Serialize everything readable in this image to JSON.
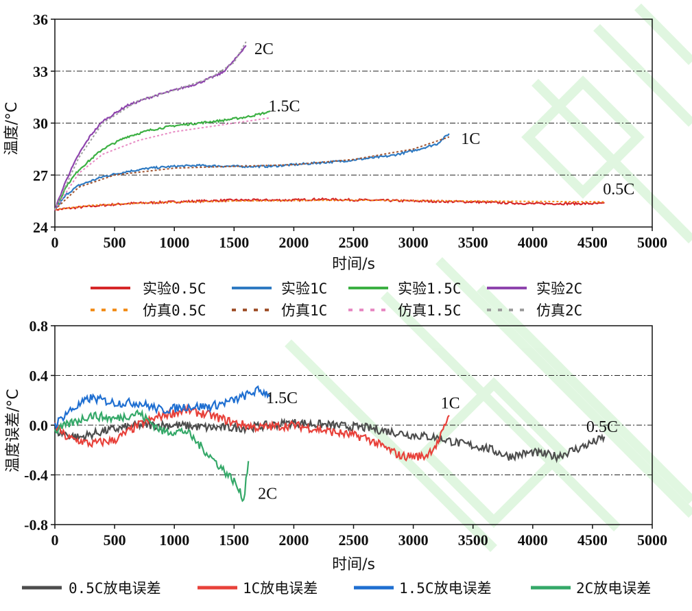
{
  "chart_data": [
    {
      "type": "line",
      "title": "",
      "xlabel": "时间/s",
      "ylabel": "温度/°C",
      "xlim": [
        0,
        5000
      ],
      "ylim": [
        24,
        36
      ],
      "xticks": [
        "0",
        "500",
        "1000",
        "1500",
        "2000",
        "2500",
        "3000",
        "3500",
        "4000",
        "4500",
        "5000"
      ],
      "yticks": [
        "24",
        "27",
        "30",
        "33",
        "36"
      ],
      "grid": "dash-dot horizontal at 27, 30, 33",
      "legend_position": "bottom",
      "annotations": [
        {
          "text": "2C",
          "x": 1750,
          "y": 34.3
        },
        {
          "text": "1.5C",
          "x": 1920,
          "y": 31.0
        },
        {
          "text": "1C",
          "x": 3480,
          "y": 29.1
        },
        {
          "text": "0.5C",
          "x": 4720,
          "y": 26.2
        }
      ],
      "series": [
        {
          "name": "实验0.5C",
          "style": "solid",
          "color": "#d62728",
          "x": [
            0,
            300,
            600,
            1000,
            1500,
            2000,
            2200,
            2600,
            3000,
            3500,
            4000,
            4300,
            4600
          ],
          "y": [
            25.0,
            25.2,
            25.35,
            25.45,
            25.55,
            25.55,
            25.6,
            25.55,
            25.5,
            25.45,
            25.35,
            25.35,
            25.35
          ]
        },
        {
          "name": "实验1C",
          "style": "solid",
          "color": "#2f7ac2",
          "x": [
            0,
            100,
            200,
            400,
            600,
            800,
            1000,
            1200,
            1500,
            1800,
            2000,
            2400,
            2800,
            3000,
            3200,
            3300
          ],
          "y": [
            25.0,
            25.9,
            26.4,
            26.9,
            27.2,
            27.4,
            27.5,
            27.55,
            27.5,
            27.5,
            27.6,
            27.8,
            28.1,
            28.4,
            28.8,
            29.4
          ]
        },
        {
          "name": "实验1.5C",
          "style": "solid",
          "color": "#3cb043",
          "x": [
            0,
            100,
            200,
            400,
            600,
            800,
            1000,
            1200,
            1400,
            1600,
            1800
          ],
          "y": [
            25.0,
            26.4,
            27.3,
            28.5,
            29.2,
            29.6,
            29.85,
            30.0,
            30.15,
            30.35,
            30.65
          ]
        },
        {
          "name": "实验2C",
          "style": "solid",
          "color": "#8e44ad",
          "x": [
            0,
            100,
            200,
            300,
            400,
            600,
            800,
            1000,
            1200,
            1400,
            1500,
            1600
          ],
          "y": [
            25.0,
            26.8,
            28.2,
            29.3,
            30.1,
            31.0,
            31.5,
            31.9,
            32.3,
            32.9,
            33.6,
            34.5
          ]
        },
        {
          "name": "仿真0.5C",
          "style": "dotted",
          "color": "#f28e1c",
          "x": [
            0,
            300,
            800,
            1500,
            2500,
            3500,
            4600
          ],
          "y": [
            25.0,
            25.25,
            25.4,
            25.5,
            25.55,
            25.5,
            25.45
          ]
        },
        {
          "name": "仿真1C",
          "style": "dotted",
          "color": "#a0522d",
          "x": [
            0,
            200,
            500,
            1000,
            1500,
            2000,
            2500,
            3000,
            3300
          ],
          "y": [
            25.0,
            26.3,
            27.0,
            27.4,
            27.5,
            27.6,
            27.9,
            28.5,
            29.2
          ]
        },
        {
          "name": "仿真1.5C",
          "style": "dotted",
          "color": "#e78ac3",
          "x": [
            0,
            200,
            400,
            700,
            1000,
            1400,
            1800
          ],
          "y": [
            25.0,
            27.1,
            28.2,
            29.0,
            29.5,
            29.9,
            30.3
          ]
        },
        {
          "name": "仿真2C",
          "style": "dotted",
          "color": "#9e9e9e",
          "x": [
            0,
            200,
            400,
            700,
            1000,
            1300,
            1500,
            1600
          ],
          "y": [
            25.0,
            28.0,
            30.0,
            31.3,
            31.9,
            32.6,
            33.5,
            34.7
          ]
        }
      ]
    },
    {
      "type": "line",
      "title": "",
      "xlabel": "时间/s",
      "ylabel": "温度误差/°C",
      "xlim": [
        0,
        5000
      ],
      "ylim": [
        -0.8,
        0.8
      ],
      "xticks": [
        "0",
        "500",
        "1000",
        "1500",
        "2000",
        "2500",
        "3000",
        "3500",
        "4000",
        "4500",
        "5000"
      ],
      "yticks": [
        "0.8",
        "0.4",
        "0.0",
        "-0.4",
        "-0.8"
      ],
      "grid": "dash-dot horizontal at -0.4, 0.0, 0.4",
      "legend_position": "bottom",
      "annotations": [
        {
          "text": "1.5C",
          "x": 1900,
          "y": 0.22
        },
        {
          "text": "1C",
          "x": 3310,
          "y": 0.18
        },
        {
          "text": "0.5C",
          "x": 4580,
          "y": -0.01
        },
        {
          "text": "2C",
          "x": 1780,
          "y": -0.55
        }
      ],
      "series": [
        {
          "name": "0.5C放电误差",
          "color": "#4d4d4d",
          "x": [
            0,
            200,
            400,
            700,
            1000,
            1300,
            1600,
            2000,
            2300,
            2600,
            2800,
            3000,
            3200,
            3400,
            3600,
            3800,
            4000,
            4200,
            4400,
            4600
          ],
          "y": [
            -0.05,
            -0.1,
            -0.05,
            0.0,
            0.0,
            -0.02,
            -0.02,
            0.02,
            0.0,
            -0.02,
            -0.05,
            -0.08,
            -0.1,
            -0.15,
            -0.18,
            -0.25,
            -0.22,
            -0.25,
            -0.18,
            -0.1
          ]
        },
        {
          "name": "1C放电误差",
          "color": "#e8413a",
          "x": [
            0,
            100,
            300,
            500,
            700,
            900,
            1100,
            1300,
            1500,
            1700,
            2000,
            2300,
            2600,
            2900,
            3100,
            3200,
            3250,
            3300
          ],
          "y": [
            0.0,
            -0.1,
            -0.15,
            -0.12,
            0.0,
            0.08,
            0.12,
            0.08,
            0.02,
            -0.02,
            0.0,
            -0.05,
            -0.1,
            -0.25,
            -0.25,
            -0.15,
            -0.05,
            0.1
          ]
        },
        {
          "name": "1.5C放电误差",
          "color": "#1f6fd1",
          "x": [
            0,
            100,
            300,
            500,
            700,
            900,
            1100,
            1300,
            1500,
            1700,
            1800
          ],
          "y": [
            0.0,
            0.1,
            0.22,
            0.18,
            0.18,
            0.12,
            0.15,
            0.15,
            0.2,
            0.28,
            0.25
          ]
        },
        {
          "name": "2C放电误差",
          "color": "#34a868",
          "x": [
            0,
            100,
            300,
            500,
            700,
            900,
            1100,
            1200,
            1300,
            1400,
            1500,
            1580,
            1620
          ],
          "y": [
            -0.05,
            0.0,
            0.08,
            0.05,
            0.1,
            -0.05,
            -0.05,
            -0.15,
            -0.25,
            -0.35,
            -0.45,
            -0.6,
            -0.28
          ]
        }
      ]
    }
  ]
}
